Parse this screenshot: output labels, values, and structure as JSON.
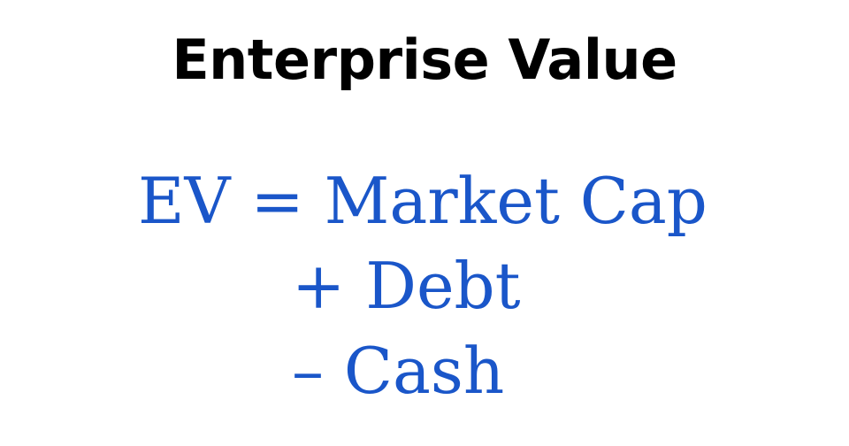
{
  "title": "Enterprise Value",
  "formula": {
    "line1": "EV = Market Cap",
    "line2": "+ Debt",
    "line3": "– Cash"
  },
  "colors": {
    "title": "#000000",
    "formula": "#1a56c9",
    "background": "#ffffff"
  }
}
